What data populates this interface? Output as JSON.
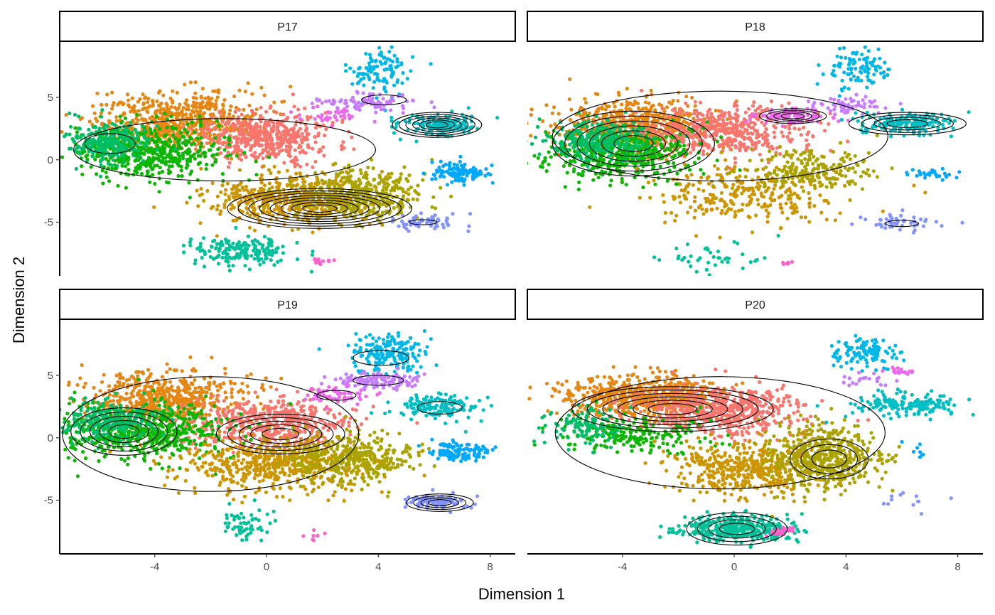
{
  "chart_data": {
    "type": "scatter",
    "xlabel": "Dimension 1",
    "ylabel": "Dimension 2",
    "xlim": [
      -7.4,
      8.9
    ],
    "ylim": [
      -9.3,
      9.5
    ],
    "x_ticks": [
      {
        "value": -4,
        "label": "-4"
      },
      {
        "value": 0,
        "label": "0"
      },
      {
        "value": 4,
        "label": "4"
      },
      {
        "value": 8,
        "label": "8"
      }
    ],
    "y_ticks": [
      {
        "value": 5,
        "label": "5"
      },
      {
        "value": 0,
        "label": "0"
      },
      {
        "value": -5,
        "label": "-5"
      }
    ],
    "grid": false,
    "legend": "none",
    "cluster_colors": {
      "orange": "#E68613",
      "salmon": "#F8766D",
      "olive": "#ABA300",
      "gold": "#CD9600",
      "green": "#0CB702",
      "teal_green": "#00BE67",
      "teal": "#00BFC4",
      "sky": "#00A9FF",
      "cyan": "#00C19A",
      "azure": "#00B8E7",
      "violet": "#8494FF",
      "lavender": "#C77CFF",
      "magenta": "#ED68ED",
      "pink": "#FF61CC"
    },
    "panels": [
      {
        "label": "P17",
        "clusters": [
          {
            "color": "orange",
            "cx": -3.2,
            "cy": 3.2,
            "sx": 1.5,
            "sy": 1.1,
            "n": 600
          },
          {
            "color": "salmon",
            "cx": -0.2,
            "cy": 1.8,
            "sx": 1.2,
            "sy": 1.0,
            "n": 500
          },
          {
            "color": "green",
            "cx": -4.2,
            "cy": 0.6,
            "sx": 1.3,
            "sy": 1.1,
            "n": 520
          },
          {
            "color": "teal_green",
            "cx": -5.7,
            "cy": 1.3,
            "sx": 0.7,
            "sy": 0.8,
            "n": 260
          },
          {
            "color": "gold",
            "cx": 0.8,
            "cy": -3.2,
            "sx": 1.4,
            "sy": 1.0,
            "n": 520
          },
          {
            "color": "olive",
            "cx": 3.3,
            "cy": -2.8,
            "sx": 1.1,
            "sy": 1.0,
            "n": 380
          },
          {
            "color": "cyan",
            "cx": -0.9,
            "cy": -7.3,
            "sx": 0.9,
            "sy": 0.6,
            "n": 180
          },
          {
            "color": "pink",
            "cx": 1.9,
            "cy": -8.0,
            "sx": 0.3,
            "sy": 0.2,
            "n": 12
          },
          {
            "color": "violet",
            "cx": 5.6,
            "cy": -5.0,
            "sx": 0.6,
            "sy": 0.3,
            "n": 60
          },
          {
            "color": "sky",
            "cx": 6.9,
            "cy": -1.0,
            "sx": 0.5,
            "sy": 0.4,
            "n": 120
          },
          {
            "color": "teal",
            "cx": 6.2,
            "cy": 2.8,
            "sx": 0.7,
            "sy": 0.45,
            "n": 170
          },
          {
            "color": "azure",
            "cx": 4.1,
            "cy": 7.0,
            "sx": 0.6,
            "sy": 0.9,
            "n": 110
          },
          {
            "color": "lavender",
            "cx": 3.6,
            "cy": 4.6,
            "sx": 0.9,
            "sy": 0.35,
            "n": 90
          },
          {
            "color": "magenta",
            "cx": 2.3,
            "cy": 3.5,
            "sx": 0.6,
            "sy": 0.35,
            "n": 35
          }
        ],
        "contours": [
          {
            "cx": 1.9,
            "cy": -3.9,
            "rx": 3.3,
            "ry": 1.6,
            "levels": 8
          },
          {
            "cx": -1.5,
            "cy": 0.8,
            "rx": 5.4,
            "ry": 2.5,
            "levels": 1
          },
          {
            "cx": -5.6,
            "cy": 1.3,
            "rx": 0.9,
            "ry": 0.8,
            "levels": 1
          },
          {
            "cx": 6.1,
            "cy": 2.8,
            "rx": 1.6,
            "ry": 1.0,
            "levels": 6
          },
          {
            "cx": 4.2,
            "cy": 4.8,
            "rx": 0.8,
            "ry": 0.4,
            "levels": 1
          },
          {
            "cx": 5.6,
            "cy": -5.0,
            "rx": 0.5,
            "ry": 0.2,
            "levels": 1
          }
        ]
      },
      {
        "label": "P18",
        "clusters": [
          {
            "color": "orange",
            "cx": -3.6,
            "cy": 2.8,
            "sx": 1.4,
            "sy": 1.1,
            "n": 560
          },
          {
            "color": "salmon",
            "cx": -0.4,
            "cy": 2.3,
            "sx": 1.4,
            "sy": 1.0,
            "n": 480
          },
          {
            "color": "green",
            "cx": -4.0,
            "cy": 0.5,
            "sx": 1.3,
            "sy": 1.0,
            "n": 500
          },
          {
            "color": "teal_green",
            "cx": -5.0,
            "cy": 1.6,
            "sx": 0.9,
            "sy": 0.8,
            "n": 280
          },
          {
            "color": "gold",
            "cx": 0.5,
            "cy": -2.8,
            "sx": 1.7,
            "sy": 1.2,
            "n": 300
          },
          {
            "color": "olive",
            "cx": 2.8,
            "cy": -0.8,
            "sx": 1.1,
            "sy": 0.9,
            "n": 200
          },
          {
            "color": "cyan",
            "cx": -0.8,
            "cy": -7.8,
            "sx": 0.9,
            "sy": 0.6,
            "n": 40
          },
          {
            "color": "pink",
            "cx": 1.9,
            "cy": -8.3,
            "sx": 0.1,
            "sy": 0.1,
            "n": 6
          },
          {
            "color": "violet",
            "cx": 5.9,
            "cy": -5.0,
            "sx": 0.6,
            "sy": 0.3,
            "n": 50
          },
          {
            "color": "sky",
            "cx": 7.0,
            "cy": -1.2,
            "sx": 0.6,
            "sy": 0.2,
            "n": 30
          },
          {
            "color": "teal",
            "cx": 6.2,
            "cy": 2.9,
            "sx": 0.8,
            "sy": 0.4,
            "n": 180
          },
          {
            "color": "azure",
            "cx": 4.5,
            "cy": 7.2,
            "sx": 0.6,
            "sy": 0.8,
            "n": 100
          },
          {
            "color": "lavender",
            "cx": 3.9,
            "cy": 4.4,
            "sx": 0.8,
            "sy": 0.35,
            "n": 60
          },
          {
            "color": "magenta",
            "cx": 2.1,
            "cy": 3.5,
            "sx": 0.7,
            "sy": 0.3,
            "n": 90
          }
        ],
        "contours": [
          {
            "cx": -3.6,
            "cy": 1.3,
            "rx": 2.9,
            "ry": 2.6,
            "levels": 6
          },
          {
            "cx": -0.5,
            "cy": 1.9,
            "rx": 6.0,
            "ry": 3.6,
            "levels": 1
          },
          {
            "cx": 2.1,
            "cy": 3.5,
            "rx": 1.2,
            "ry": 0.6,
            "levels": 4
          },
          {
            "cx": 6.2,
            "cy": 2.9,
            "rx": 2.1,
            "ry": 0.9,
            "levels": 4
          },
          {
            "cx": 6.0,
            "cy": -5.1,
            "rx": 0.6,
            "ry": 0.25,
            "levels": 1
          }
        ]
      },
      {
        "label": "P19",
        "clusters": [
          {
            "color": "orange",
            "cx": -3.6,
            "cy": 3.2,
            "sx": 1.4,
            "sy": 1.1,
            "n": 560
          },
          {
            "color": "salmon",
            "cx": 0.1,
            "cy": 1.2,
            "sx": 1.5,
            "sy": 1.0,
            "n": 520
          },
          {
            "color": "green",
            "cx": -4.4,
            "cy": 0.5,
            "sx": 1.5,
            "sy": 1.1,
            "n": 560
          },
          {
            "color": "teal_green",
            "cx": -5.6,
            "cy": 1.3,
            "sx": 0.8,
            "sy": 0.8,
            "n": 260
          },
          {
            "color": "gold",
            "cx": 0.3,
            "cy": -2.2,
            "sx": 1.6,
            "sy": 1.1,
            "n": 540
          },
          {
            "color": "olive",
            "cx": 2.9,
            "cy": -1.6,
            "sx": 1.1,
            "sy": 1.0,
            "n": 380
          },
          {
            "color": "cyan",
            "cx": -0.9,
            "cy": -7.0,
            "sx": 0.5,
            "sy": 0.6,
            "n": 60
          },
          {
            "color": "pink",
            "cx": 1.9,
            "cy": -8.0,
            "sx": 0.2,
            "sy": 0.2,
            "n": 8
          },
          {
            "color": "violet",
            "cx": 6.1,
            "cy": -5.1,
            "sx": 0.6,
            "sy": 0.3,
            "n": 100
          },
          {
            "color": "sky",
            "cx": 6.9,
            "cy": -1.1,
            "sx": 0.5,
            "sy": 0.4,
            "n": 120
          },
          {
            "color": "teal",
            "cx": 6.1,
            "cy": 2.5,
            "sx": 0.8,
            "sy": 0.5,
            "n": 140
          },
          {
            "color": "azure",
            "cx": 4.4,
            "cy": 6.8,
            "sx": 0.7,
            "sy": 0.8,
            "n": 180
          },
          {
            "color": "lavender",
            "cx": 4.0,
            "cy": 4.6,
            "sx": 0.8,
            "sy": 0.35,
            "n": 120
          },
          {
            "color": "magenta",
            "cx": 2.4,
            "cy": 3.5,
            "sx": 0.6,
            "sy": 0.3,
            "n": 60
          }
        ],
        "contours": [
          {
            "cx": -5.1,
            "cy": 0.5,
            "rx": 1.9,
            "ry": 1.9,
            "levels": 5
          },
          {
            "cx": 0.5,
            "cy": 0.3,
            "rx": 2.3,
            "ry": 1.6,
            "levels": 5
          },
          {
            "cx": -2.0,
            "cy": 0.3,
            "rx": 5.3,
            "ry": 4.6,
            "levels": 1
          },
          {
            "cx": 4.1,
            "cy": 6.4,
            "rx": 1.0,
            "ry": 0.6,
            "levels": 1
          },
          {
            "cx": 4.0,
            "cy": 4.6,
            "rx": 0.9,
            "ry": 0.4,
            "levels": 1
          },
          {
            "cx": 2.5,
            "cy": 3.4,
            "rx": 0.7,
            "ry": 0.4,
            "levels": 1
          },
          {
            "cx": 6.2,
            "cy": 2.4,
            "rx": 0.8,
            "ry": 0.5,
            "levels": 1
          },
          {
            "cx": 6.2,
            "cy": -5.2,
            "rx": 1.2,
            "ry": 0.7,
            "levels": 4
          }
        ]
      },
      {
        "label": "P20",
        "clusters": [
          {
            "color": "orange",
            "cx": -3.2,
            "cy": 3.3,
            "sx": 1.4,
            "sy": 0.9,
            "n": 620
          },
          {
            "color": "salmon",
            "cx": -0.4,
            "cy": 2.1,
            "sx": 1.5,
            "sy": 1.0,
            "n": 560
          },
          {
            "color": "green",
            "cx": -3.4,
            "cy": 0.2,
            "sx": 1.4,
            "sy": 0.9,
            "n": 200
          },
          {
            "color": "teal_green",
            "cx": -5.3,
            "cy": 1.0,
            "sx": 0.7,
            "sy": 0.8,
            "n": 120
          },
          {
            "color": "gold",
            "cx": 0.5,
            "cy": -2.5,
            "sx": 1.4,
            "sy": 1.1,
            "n": 460
          },
          {
            "color": "olive",
            "cx": 3.2,
            "cy": -1.6,
            "sx": 1.0,
            "sy": 1.3,
            "n": 500
          },
          {
            "color": "cyan",
            "cx": 0.1,
            "cy": -7.3,
            "sx": 1.0,
            "sy": 0.5,
            "n": 380
          },
          {
            "color": "pink",
            "cx": 1.7,
            "cy": -7.5,
            "sx": 0.2,
            "sy": 0.2,
            "n": 30
          },
          {
            "color": "violet",
            "cx": 5.8,
            "cy": -5.0,
            "sx": 0.7,
            "sy": 0.4,
            "n": 12
          },
          {
            "color": "sky",
            "cx": 6.4,
            "cy": -1.2,
            "sx": 0.3,
            "sy": 0.3,
            "n": 8
          },
          {
            "color": "teal",
            "cx": 6.1,
            "cy": 2.7,
            "sx": 1.0,
            "sy": 0.5,
            "n": 160
          },
          {
            "color": "azure",
            "cx": 4.7,
            "cy": 6.7,
            "sx": 0.6,
            "sy": 0.6,
            "n": 120
          },
          {
            "color": "lavender",
            "cx": 4.6,
            "cy": 4.7,
            "sx": 0.5,
            "sy": 0.3,
            "n": 20
          },
          {
            "color": "magenta",
            "cx": 5.9,
            "cy": 5.3,
            "sx": 0.3,
            "sy": 0.1,
            "n": 20
          }
        ],
        "contours": [
          {
            "cx": -2.2,
            "cy": 2.3,
            "rx": 3.6,
            "ry": 1.8,
            "levels": 6
          },
          {
            "cx": 3.4,
            "cy": -1.7,
            "rx": 1.4,
            "ry": 1.6,
            "levels": 3
          },
          {
            "cx": -0.5,
            "cy": 0.4,
            "rx": 5.9,
            "ry": 4.5,
            "levels": 1
          },
          {
            "cx": 0.1,
            "cy": -7.3,
            "rx": 1.8,
            "ry": 1.3,
            "levels": 4
          }
        ]
      }
    ]
  }
}
